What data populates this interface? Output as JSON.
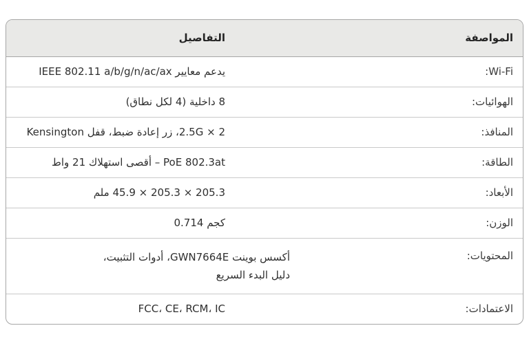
{
  "table": {
    "header": {
      "spec_label": "المواصفة",
      "details_label": "التفاصيل"
    },
    "rows": [
      {
        "label": "Wi-Fi:",
        "value": "يدعم معايير IEEE 802.11 a/b/g/n/ac/ax"
      },
      {
        "label": "الهوائيات:",
        "value": "8 داخلية (4 لكل نطاق)"
      },
      {
        "label": "المنافذ:",
        "value": "2 × 2.5G، زر إعادة ضبط، قفل Kensington"
      },
      {
        "label": "الطاقة:",
        "value": "PoE 802.3at – أقصى استهلاك 21 واط"
      },
      {
        "label": "الأبعاد:",
        "value": "205.3 × 205.3 × 45.9 ملم"
      },
      {
        "label": "الوزن:",
        "value": "0.714 كجم"
      },
      {
        "label": "المحتويات:",
        "value": "أكسس بوينت GWN7664E، أدوات التثبيت،\nدليل البدء السريع"
      },
      {
        "label": "الاعتمادات:",
        "value": "FCC، CE، RCM، IC"
      }
    ],
    "colors": {
      "header_background": "#e9e9e7",
      "outer_border": "#a6a6a6",
      "row_divider": "#c9c9c9",
      "text": "#2f2f2f"
    }
  }
}
